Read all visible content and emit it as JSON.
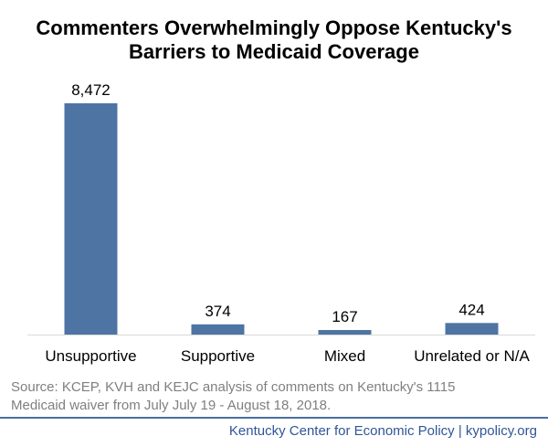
{
  "title_lines": [
    "Commenters Overwhelmingly Oppose Kentucky's",
    "Barriers to Medicaid Coverage"
  ],
  "source_lines": [
    "Source: KCEP, KVH and KEJC analysis of comments on Kentucky's 1115",
    "Medicaid waiver from July July 19 - August 18, 2018."
  ],
  "footer": "Kentucky Center for Economic Policy | kypolicy.org",
  "colors": {
    "bar": "#4e74a4",
    "footer": "#2f5597",
    "source": "#7f7f7f",
    "axis": "#d9d9d9"
  },
  "chart_data": {
    "type": "bar",
    "title": "Commenters Overwhelmingly Oppose Kentucky's Barriers to Medicaid Coverage",
    "categories": [
      "Unsupportive",
      "Supportive",
      "Mixed",
      "Unrelated or N/A"
    ],
    "values": [
      8472,
      374,
      167,
      424
    ],
    "data_labels": [
      "8,472",
      "374",
      "167",
      "424"
    ],
    "xlabel": "",
    "ylabel": "",
    "ylim": [
      0,
      8472
    ],
    "grid": false,
    "legend": "none"
  }
}
